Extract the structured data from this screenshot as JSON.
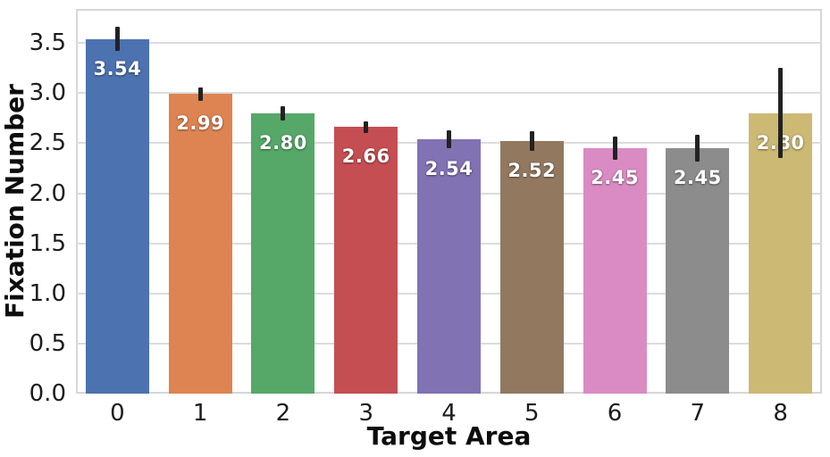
{
  "chart_data": {
    "type": "bar",
    "title": "",
    "xlabel": "Target Area",
    "ylabel": "Fixation Number",
    "categories": [
      "0",
      "1",
      "2",
      "3",
      "4",
      "5",
      "6",
      "7",
      "8"
    ],
    "values": [
      3.54,
      2.99,
      2.8,
      2.66,
      2.54,
      2.52,
      2.45,
      2.45,
      2.8
    ],
    "value_labels": [
      "3.54",
      "2.99",
      "2.80",
      "2.66",
      "2.54",
      "2.52",
      "2.45",
      "2.45",
      "2.80"
    ],
    "errors": [
      0.12,
      0.07,
      0.07,
      0.06,
      0.09,
      0.1,
      0.12,
      0.13,
      0.45
    ],
    "bar_colors": [
      "#4c72b0",
      "#dd8452",
      "#55a868",
      "#c44e52",
      "#8172b3",
      "#937860",
      "#da8bc3",
      "#8c8c8c",
      "#ccb974"
    ],
    "y_ticks": [
      "0.0",
      "0.5",
      "1.0",
      "1.5",
      "2.0",
      "2.5",
      "3.0",
      "3.5"
    ],
    "y_tick_values": [
      0,
      0.5,
      1.0,
      1.5,
      2.0,
      2.5,
      3.0,
      3.5
    ],
    "ylim": [
      0,
      3.84
    ],
    "grid": "horizontal",
    "legend": "none",
    "error_bar_color": "#222222",
    "grid_color": "#dcdcdc",
    "frame_color": "#d6d6d6",
    "value_label_color": "#ffffff",
    "background": "#ffffff"
  }
}
